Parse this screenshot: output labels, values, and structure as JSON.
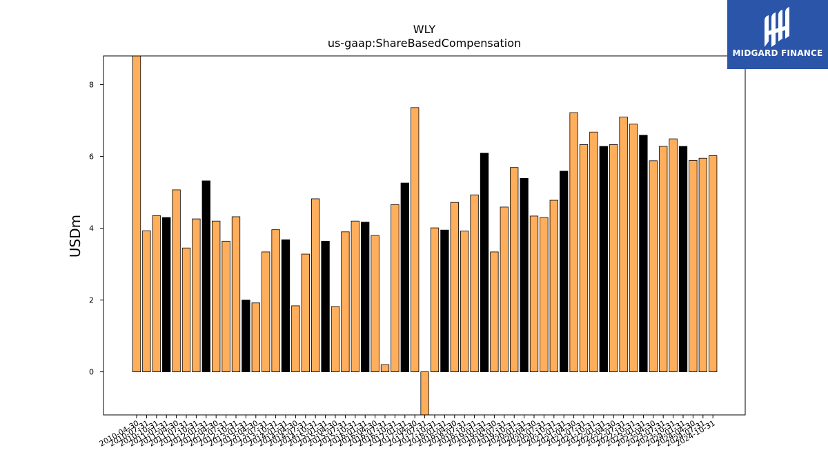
{
  "logo": {
    "text": "MIDGARD FINANCE",
    "background": "#2b55a8"
  },
  "chart_data": {
    "type": "bar",
    "title": "WLY",
    "subtitle": "us-gaap:ShareBasedCompensation",
    "ylabel": "USDm",
    "xlabel": "",
    "ylim": [
      -1.2,
      8.8
    ],
    "yticks": [
      0,
      2,
      4,
      6,
      8
    ],
    "colors": {
      "default": "#ffae5c",
      "highlight": "#000000",
      "edge": "#000000"
    },
    "categories": [
      "2010-04-30",
      "2010-07-31",
      "2010-10-31",
      "2011-01-31",
      "2011-04-30",
      "2011-07-31",
      "2011-10-31",
      "2012-01-31",
      "2012-04-30",
      "2012-07-31",
      "2012-10-31",
      "2013-01-31",
      "2013-04-30",
      "2013-07-31",
      "2013-10-31",
      "2014-01-31",
      "2014-04-30",
      "2014-07-31",
      "2014-10-31",
      "2015-01-31",
      "2015-04-30",
      "2015-07-31",
      "2015-10-31",
      "2016-01-31",
      "2016-04-30",
      "2016-07-31",
      "2016-10-31",
      "2017-01-31",
      "2017-04-30",
      "2017-07-31",
      "2017-10-31",
      "2018-01-31",
      "2018-04-30",
      "2018-07-31",
      "2018-10-31",
      "2019-01-31",
      "2019-04-30",
      "2019-07-31",
      "2019-10-31",
      "2020-01-31",
      "2020-04-30",
      "2020-07-31",
      "2020-10-31",
      "2021-01-31",
      "2021-04-30",
      "2021-07-31",
      "2021-10-31",
      "2022-01-31",
      "2022-04-30",
      "2022-07-31",
      "2022-10-31",
      "2023-01-31",
      "2023-04-30",
      "2023-07-31",
      "2023-10-31",
      "2024-01-31",
      "2024-04-30",
      "2024-07-31",
      "2024-10-31"
    ],
    "values": [
      8.8,
      3.93,
      4.35,
      4.3,
      5.07,
      3.45,
      4.26,
      5.32,
      4.2,
      3.64,
      4.32,
      2.0,
      1.92,
      3.34,
      3.96,
      3.68,
      1.84,
      3.28,
      4.82,
      3.64,
      1.82,
      3.9,
      4.2,
      4.17,
      3.8,
      0.2,
      4.66,
      5.26,
      7.36,
      -1.2,
      4.01,
      3.95,
      4.72,
      3.92,
      4.93,
      6.09,
      3.34,
      4.59,
      5.69,
      5.39,
      4.34,
      4.3,
      4.78,
      5.59,
      7.22,
      6.33,
      6.68,
      6.28,
      6.33,
      7.1,
      6.9,
      6.59,
      5.88,
      6.28,
      6.49,
      6.28,
      5.89,
      5.95,
      6.02
    ],
    "highlight": [
      false,
      false,
      false,
      true,
      false,
      false,
      false,
      true,
      false,
      false,
      false,
      true,
      false,
      false,
      false,
      true,
      false,
      false,
      false,
      true,
      false,
      false,
      false,
      true,
      false,
      false,
      false,
      true,
      false,
      false,
      false,
      true,
      false,
      false,
      false,
      true,
      false,
      false,
      false,
      true,
      false,
      false,
      false,
      true,
      false,
      false,
      false,
      true,
      false,
      false,
      false,
      true,
      false,
      false,
      false,
      true,
      false,
      false,
      false
    ]
  }
}
